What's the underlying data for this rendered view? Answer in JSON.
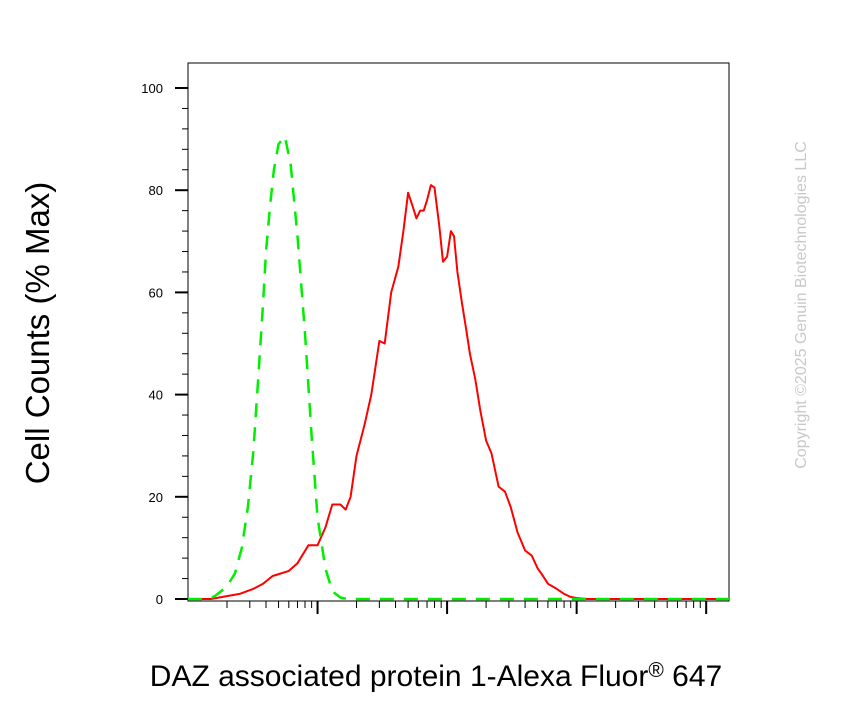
{
  "chart_data": {
    "type": "line",
    "title": "",
    "xlabel": "DAZ associated protein 1-Alexa Fluor",
    "xlabel_mark": "®",
    "xlabel_suffix": " 647",
    "ylabel": "Cell Counts (% Max)",
    "x_scale": "log",
    "xlim": [
      100,
      1500000
    ],
    "ylim": [
      0,
      100
    ],
    "y_ticks": [
      0,
      20,
      40,
      60,
      80,
      100
    ],
    "y_tick_labels": [
      "0",
      "20",
      "40",
      "60",
      "80",
      "100"
    ],
    "x_tick_labels": [],
    "grid": false,
    "legend": "none",
    "series": [
      {
        "color": "#ff0000",
        "style": "solid",
        "x": [
          100,
          150,
          250,
          320,
          380,
          450,
          520,
          600,
          700,
          850,
          1000,
          1150,
          1300,
          1500,
          1650,
          1800,
          2000,
          2300,
          2600,
          3000,
          3300,
          3700,
          4200,
          4600,
          5000,
          5400,
          5800,
          6200,
          6600,
          7000,
          7500,
          8000,
          8700,
          9300,
          10000,
          10700,
          11300,
          12000,
          13000,
          14000,
          15000,
          16500,
          18000,
          20000,
          22000,
          25000,
          28000,
          31000,
          35000,
          40000,
          45000,
          50000,
          55000,
          60000,
          70000,
          80000,
          90000,
          100000,
          120000,
          150000,
          200000,
          300000,
          600000,
          1500000
        ],
        "y": [
          0,
          0,
          1,
          2,
          3,
          4.5,
          5,
          5.5,
          7,
          10.5,
          10.5,
          14,
          18.5,
          18.5,
          17.5,
          20,
          28,
          34,
          40,
          50.5,
          50,
          60,
          65,
          72,
          79.5,
          77,
          74.5,
          76,
          76,
          78,
          81,
          80.5,
          73,
          66,
          67,
          72,
          71,
          64,
          58,
          53,
          48,
          43,
          37,
          31,
          28.5,
          22,
          21,
          18,
          13,
          9.5,
          8.5,
          6,
          4.5,
          3,
          2,
          1,
          0.4,
          0.2,
          0,
          0,
          0,
          0,
          0,
          0
        ]
      },
      {
        "color": "#00ee00",
        "style": "dashed",
        "x": [
          100,
          120,
          140,
          160,
          180,
          200,
          230,
          260,
          290,
          320,
          350,
          380,
          400,
          430,
          460,
          500,
          560,
          620,
          700,
          800,
          900,
          1000,
          1150,
          1300,
          1500,
          1700,
          2000,
          2500,
          3000,
          4000,
          10000,
          100000,
          1500000
        ],
        "y": [
          0,
          0,
          0,
          0.5,
          1.5,
          2.5,
          5,
          10,
          18,
          29,
          44,
          58,
          68,
          77,
          84,
          89,
          90.5,
          85,
          71,
          52,
          32,
          16,
          6,
          1.5,
          0.3,
          0,
          0,
          0,
          0,
          0,
          0,
          0,
          0
        ]
      }
    ]
  },
  "watermark": "Copyright ©2025 Genuin Biotechnologies LLC"
}
